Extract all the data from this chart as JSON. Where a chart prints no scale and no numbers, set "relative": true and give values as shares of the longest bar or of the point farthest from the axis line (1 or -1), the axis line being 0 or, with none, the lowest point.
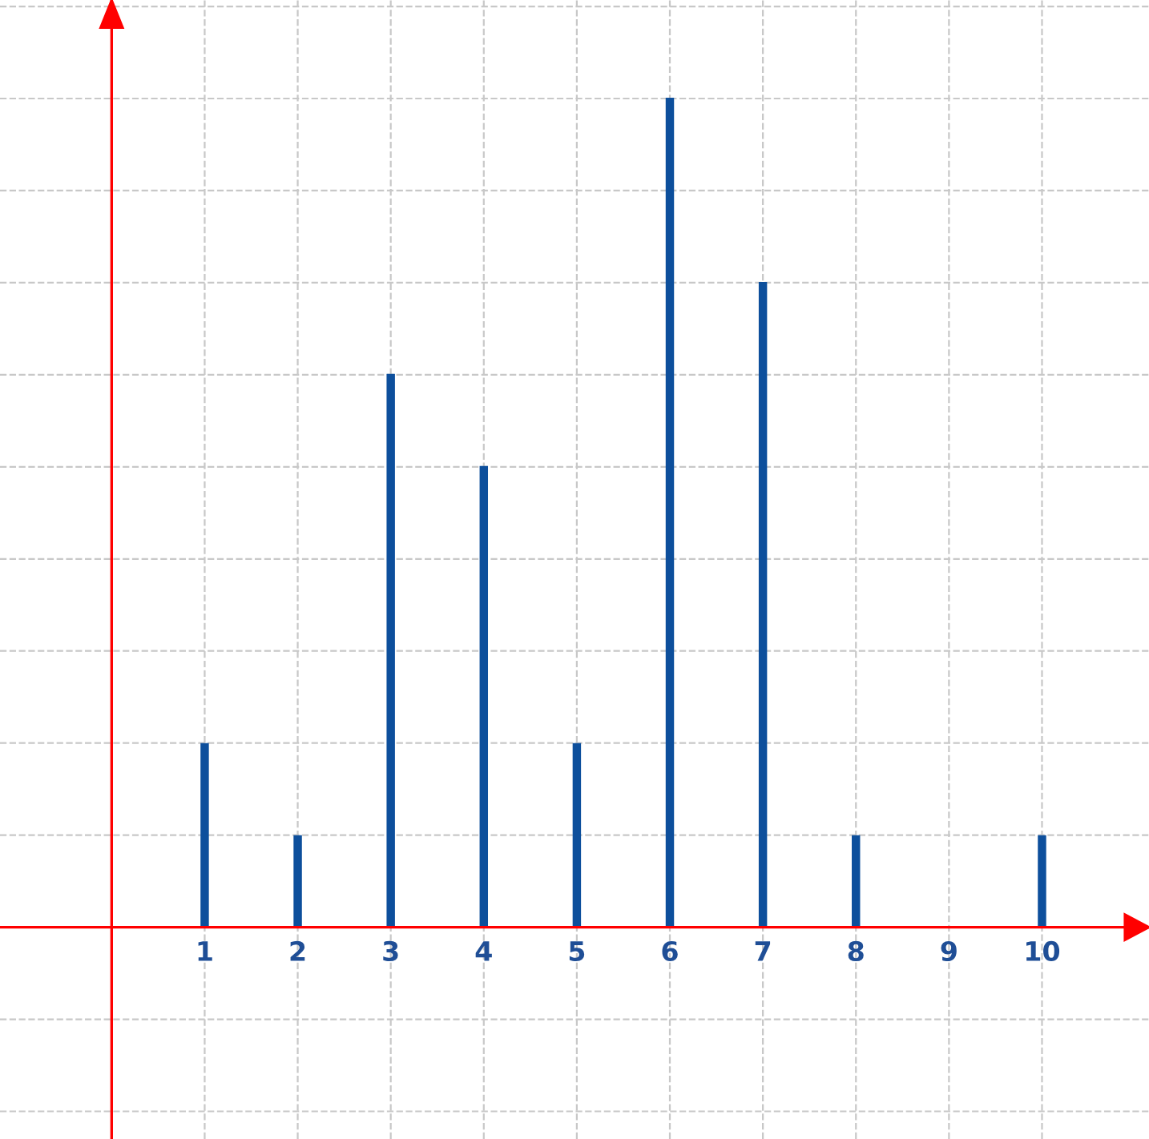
{
  "chart_data": {
    "type": "bar",
    "relative": true,
    "x": [
      1,
      2,
      3,
      4,
      5,
      6,
      7,
      8,
      9,
      10
    ],
    "values": [
      0.222,
      0.111,
      0.667,
      0.556,
      0.222,
      1,
      0.778,
      0.111,
      0,
      0.111
    ],
    "color": "#0d4f9c",
    "xlim": [
      -1.2,
      11.15
    ],
    "xticks": [
      1,
      2,
      3,
      4,
      5,
      6,
      7,
      8,
      9,
      10
    ],
    "grid": true,
    "ref_lines": [
      {
        "axis": "x",
        "value": 0,
        "color": "#ff0000"
      }
    ]
  }
}
